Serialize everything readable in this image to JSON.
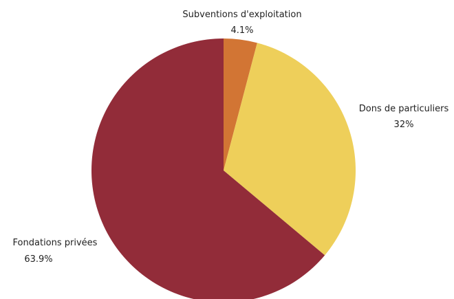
{
  "chart_data": {
    "type": "pie",
    "title": "",
    "start_angle_deg": 0,
    "direction": "clockwise",
    "slices": [
      {
        "label": "Subventions d'exploitation",
        "value": 4.1,
        "value_label": "4.1%",
        "color": "#d27534"
      },
      {
        "label": "Dons de particuliers",
        "value": 32,
        "value_label": "32%",
        "color": "#eecf5a"
      },
      {
        "label": "Fondations privées",
        "value": 63.9,
        "value_label": "63.9%",
        "color": "#922c39"
      }
    ]
  }
}
